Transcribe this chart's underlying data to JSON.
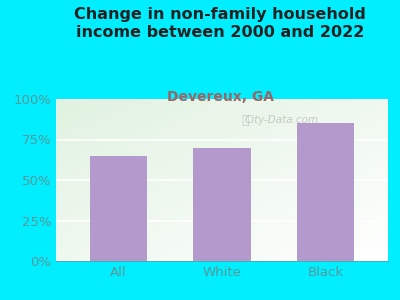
{
  "title": "Change in non-family household\nincome between 2000 and 2022",
  "subtitle": "Devereux, GA",
  "categories": [
    "All",
    "White",
    "Black"
  ],
  "values": [
    65,
    70,
    85
  ],
  "bar_color": "#b399cc",
  "background_color": "#00eeff",
  "plot_bg_color": "#eef5e8",
  "title_color": "#222222",
  "subtitle_color": "#996666",
  "tick_color": "#559999",
  "grid_color": "#dddddd",
  "ylim": [
    0,
    100
  ],
  "yticks": [
    0,
    25,
    50,
    75,
    100
  ],
  "ytick_labels": [
    "0%",
    "25%",
    "50%",
    "75%",
    "100%"
  ],
  "watermark": "City-Data.com",
  "title_fontsize": 11.5,
  "subtitle_fontsize": 10,
  "tick_fontsize": 9.5
}
